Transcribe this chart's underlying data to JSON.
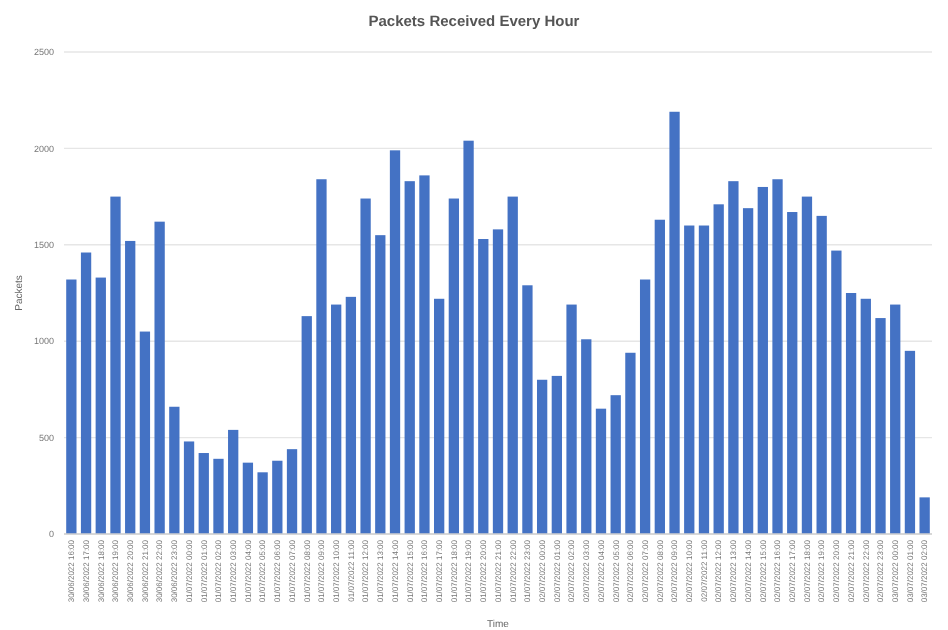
{
  "chart_data": {
    "type": "bar",
    "title": "Packets Received Every Hour",
    "xlabel": "Time",
    "ylabel": "Packets",
    "color": "#4472c4",
    "grid": "y",
    "ylim": [
      0,
      2500
    ],
    "yticks": [
      0,
      500,
      1000,
      1500,
      2000,
      2500
    ],
    "categories": [
      "30/06/2022 16:00",
      "30/06/2022 17:00",
      "30/06/2022 18:00",
      "30/06/2022 19:00",
      "30/06/2022 20:00",
      "30/06/2022 21:00",
      "30/06/2022 22:00",
      "30/06/2022 23:00",
      "01/07/2022 00:00",
      "01/07/2022 01:00",
      "01/07/2022 02:00",
      "01/07/2022 03:00",
      "01/07/2022 04:00",
      "01/07/2022 05:00",
      "01/07/2022 06:00",
      "01/07/2022 07:00",
      "01/07/2022 08:00",
      "01/07/2022 09:00",
      "01/07/2022 10:00",
      "01/07/2022 11:00",
      "01/07/2022 12:00",
      "01/07/2022 13:00",
      "01/07/2022 14:00",
      "01/07/2022 15:00",
      "01/07/2022 16:00",
      "01/07/2022 17:00",
      "01/07/2022 18:00",
      "01/07/2022 19:00",
      "01/07/2022 20:00",
      "01/07/2022 21:00",
      "01/07/2022 22:00",
      "01/07/2022 23:00",
      "02/07/2022 00:00",
      "02/07/2022 01:00",
      "02/07/2022 02:00",
      "02/07/2022 03:00",
      "02/07/2022 04:00",
      "02/07/2022 05:00",
      "02/07/2022 06:00",
      "02/07/2022 07:00",
      "02/07/2022 08:00",
      "02/07/2022 09:00",
      "02/07/2022 10:00",
      "02/07/2022 11:00",
      "02/07/2022 12:00",
      "02/07/2022 13:00",
      "02/07/2022 14:00",
      "02/07/2022 15:00",
      "02/07/2022 16:00",
      "02/07/2022 17:00",
      "02/07/2022 18:00",
      "02/07/2022 19:00",
      "02/07/2022 20:00",
      "02/07/2022 21:00",
      "02/07/2022 22:00",
      "02/07/2022 23:00",
      "03/07/2022 00:00",
      "03/07/2022 01:00",
      "03/07/2022 02:00"
    ],
    "values": [
      1320,
      1460,
      1330,
      1750,
      1520,
      1050,
      1620,
      660,
      480,
      420,
      390,
      540,
      370,
      320,
      380,
      440,
      1130,
      1840,
      1190,
      1230,
      1740,
      1550,
      1990,
      1830,
      1860,
      1220,
      1740,
      2040,
      1530,
      1580,
      1750,
      1290,
      800,
      820,
      1190,
      1010,
      650,
      720,
      940,
      1320,
      1630,
      2190,
      1600,
      1600,
      1710,
      1830,
      1690,
      1800,
      1840,
      1670,
      1750,
      1650,
      1470,
      1250,
      1220,
      1120,
      1190,
      950,
      190
    ]
  }
}
